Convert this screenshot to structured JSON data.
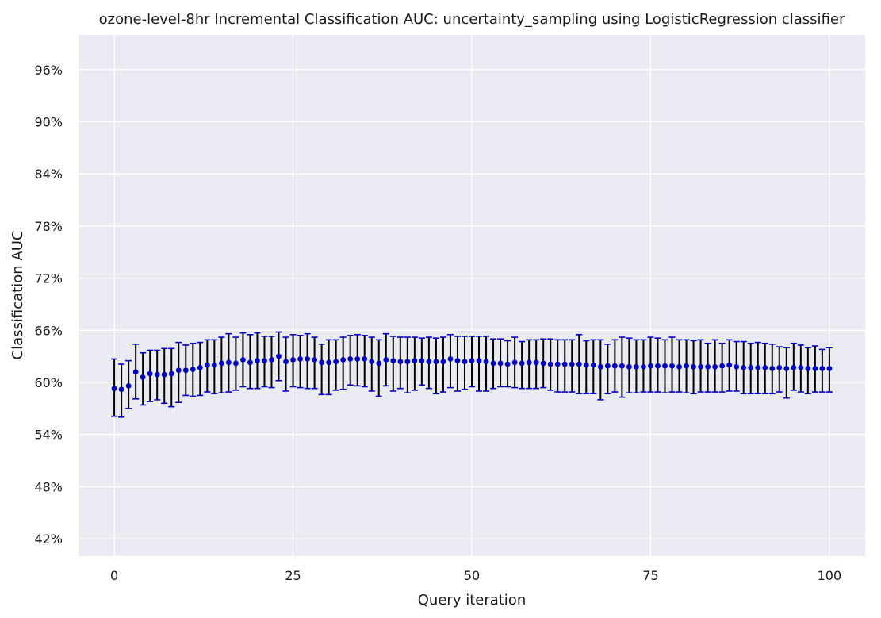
{
  "chart_data": {
    "type": "scatter",
    "title": "ozone-level-8hr Incremental Classification AUC: uncertainty_sampling using LogisticRegression classifier",
    "xlabel": "Query iteration",
    "ylabel": "Classification AUC",
    "xlim": [
      -5,
      105
    ],
    "ylim": [
      0.4,
      1.0
    ],
    "xticks": [
      0,
      25,
      50,
      75,
      100
    ],
    "xtick_labels": [
      "0",
      "25",
      "50",
      "75",
      "100"
    ],
    "yticks": [
      0.42,
      0.48,
      0.54,
      0.6,
      0.66,
      0.72,
      0.78,
      0.84,
      0.9,
      0.96
    ],
    "ytick_labels": [
      "42%",
      "48%",
      "54%",
      "60%",
      "66%",
      "72%",
      "78%",
      "84%",
      "90%",
      "96%"
    ],
    "grid": true,
    "colors": {
      "background": "#EAEAF2",
      "grid": "#FFFFFF",
      "marker": "#0000CC",
      "error_bar": "#000000",
      "cap": "#0000CC"
    },
    "series": [
      {
        "x": [
          0,
          1,
          2,
          3,
          4,
          5,
          6,
          7,
          8,
          9,
          10,
          11,
          12,
          13,
          14,
          15,
          16,
          17,
          18,
          19,
          20,
          21,
          22,
          23,
          24,
          25,
          26,
          27,
          28,
          29,
          30,
          31,
          32,
          33,
          34,
          35,
          36,
          37,
          38,
          39,
          40,
          41,
          42,
          43,
          44,
          45,
          46,
          47,
          48,
          49,
          50,
          51,
          52,
          53,
          54,
          55,
          56,
          57,
          58,
          59,
          60,
          61,
          62,
          63,
          64,
          65,
          66,
          67,
          68,
          69,
          70,
          71,
          72,
          73,
          74,
          75,
          76,
          77,
          78,
          79,
          80,
          81,
          82,
          83,
          84,
          85,
          86,
          87,
          88,
          89,
          90,
          91,
          92,
          93,
          94,
          95,
          96,
          97,
          98,
          99,
          100
        ],
        "y": [
          0.593,
          0.592,
          0.596,
          0.612,
          0.606,
          0.61,
          0.609,
          0.609,
          0.61,
          0.614,
          0.614,
          0.615,
          0.617,
          0.62,
          0.62,
          0.622,
          0.623,
          0.622,
          0.626,
          0.623,
          0.625,
          0.625,
          0.626,
          0.63,
          0.624,
          0.626,
          0.627,
          0.627,
          0.626,
          0.623,
          0.623,
          0.624,
          0.626,
          0.627,
          0.627,
          0.627,
          0.624,
          0.622,
          0.626,
          0.625,
          0.624,
          0.624,
          0.625,
          0.625,
          0.624,
          0.624,
          0.624,
          0.627,
          0.625,
          0.624,
          0.625,
          0.625,
          0.624,
          0.622,
          0.622,
          0.621,
          0.623,
          0.622,
          0.623,
          0.623,
          0.622,
          0.621,
          0.621,
          0.621,
          0.621,
          0.621,
          0.62,
          0.62,
          0.618,
          0.619,
          0.619,
          0.619,
          0.618,
          0.618,
          0.618,
          0.619,
          0.619,
          0.619,
          0.619,
          0.618,
          0.619,
          0.618,
          0.618,
          0.618,
          0.618,
          0.619,
          0.62,
          0.618,
          0.617,
          0.617,
          0.617,
          0.617,
          0.616,
          0.617,
          0.616,
          0.617,
          0.617,
          0.616,
          0.616,
          0.616,
          0.616
        ],
        "yerr_low": [
          0.561,
          0.56,
          0.57,
          0.581,
          0.574,
          0.578,
          0.58,
          0.576,
          0.572,
          0.577,
          0.585,
          0.584,
          0.585,
          0.589,
          0.587,
          0.588,
          0.589,
          0.591,
          0.595,
          0.593,
          0.593,
          0.595,
          0.594,
          0.602,
          0.59,
          0.595,
          0.594,
          0.593,
          0.593,
          0.586,
          0.586,
          0.591,
          0.592,
          0.597,
          0.596,
          0.595,
          0.59,
          0.584,
          0.596,
          0.59,
          0.593,
          0.588,
          0.591,
          0.597,
          0.593,
          0.587,
          0.589,
          0.594,
          0.59,
          0.592,
          0.595,
          0.59,
          0.59,
          0.593,
          0.595,
          0.595,
          0.594,
          0.593,
          0.593,
          0.593,
          0.594,
          0.591,
          0.589,
          0.589,
          0.589,
          0.587,
          0.587,
          0.587,
          0.58,
          0.587,
          0.589,
          0.583,
          0.588,
          0.588,
          0.589,
          0.589,
          0.589,
          0.588,
          0.589,
          0.589,
          0.588,
          0.587,
          0.589,
          0.589,
          0.589,
          0.589,
          0.59,
          0.59,
          0.587,
          0.587,
          0.587,
          0.587,
          0.587,
          0.589,
          0.582,
          0.591,
          0.589,
          0.587,
          0.589,
          0.589,
          0.589
        ],
        "yerr_high": [
          0.627,
          0.621,
          0.625,
          0.644,
          0.634,
          0.637,
          0.637,
          0.639,
          0.639,
          0.646,
          0.643,
          0.645,
          0.646,
          0.649,
          0.649,
          0.652,
          0.656,
          0.652,
          0.657,
          0.655,
          0.657,
          0.653,
          0.653,
          0.658,
          0.652,
          0.655,
          0.654,
          0.656,
          0.652,
          0.644,
          0.649,
          0.649,
          0.652,
          0.654,
          0.655,
          0.654,
          0.652,
          0.649,
          0.656,
          0.653,
          0.652,
          0.652,
          0.652,
          0.651,
          0.652,
          0.651,
          0.652,
          0.655,
          0.653,
          0.653,
          0.653,
          0.653,
          0.653,
          0.65,
          0.65,
          0.648,
          0.652,
          0.647,
          0.649,
          0.649,
          0.65,
          0.65,
          0.649,
          0.649,
          0.649,
          0.655,
          0.648,
          0.649,
          0.649,
          0.644,
          0.649,
          0.652,
          0.651,
          0.649,
          0.649,
          0.652,
          0.651,
          0.649,
          0.652,
          0.649,
          0.649,
          0.648,
          0.649,
          0.645,
          0.649,
          0.645,
          0.649,
          0.647,
          0.647,
          0.645,
          0.646,
          0.645,
          0.644,
          0.641,
          0.64,
          0.645,
          0.643,
          0.64,
          0.642,
          0.638,
          0.64
        ]
      }
    ]
  }
}
